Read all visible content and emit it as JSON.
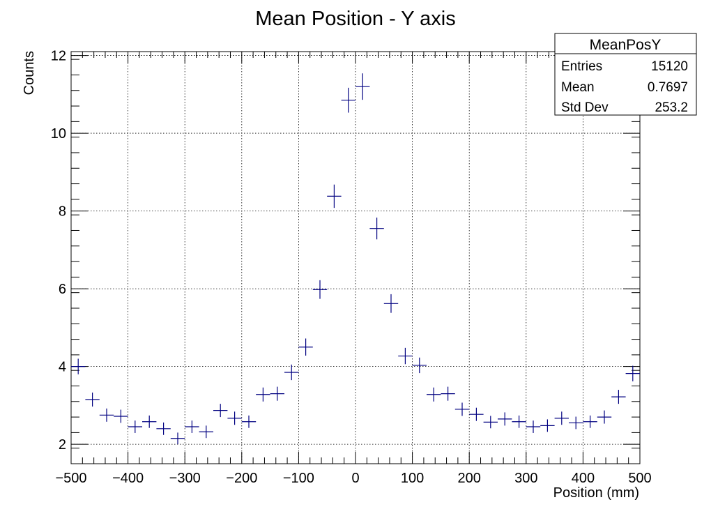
{
  "chart_data": {
    "type": "scatter",
    "title": "Mean Position - Y axis",
    "xlabel": "Position (mm)",
    "ylabel": "Counts",
    "xlim": [
      -500,
      500
    ],
    "ylim": [
      1.5,
      12.1
    ],
    "grid": true,
    "x_ticks": [
      -500,
      -400,
      -300,
      -200,
      -100,
      0,
      100,
      200,
      300,
      400,
      500
    ],
    "x_tick_labels": [
      "−500",
      "−400",
      "−300",
      "−200",
      "−100",
      "0",
      "100",
      "200",
      "300",
      "400",
      "500"
    ],
    "y_ticks": [
      2,
      4,
      6,
      8,
      10,
      12
    ],
    "y_tick_labels": [
      "2",
      "4",
      "6",
      "8",
      "10",
      "12"
    ],
    "marker_color": "#000080",
    "series": [
      {
        "x": [
          -487.5,
          -462.5,
          -437.5,
          -412.5,
          -387.5,
          -362.5,
          -337.5,
          -312.5,
          -287.5,
          -262.5,
          -237.5,
          -212.5,
          -187.5,
          -162.5,
          -137.5,
          -112.5,
          -87.5,
          -62.5,
          -37.5,
          -12.5,
          12.5,
          37.5,
          62.5,
          87.5,
          112.5,
          137.5,
          162.5,
          187.5,
          212.5,
          237.5,
          262.5,
          287.5,
          312.5,
          337.5,
          362.5,
          387.5,
          412.5,
          437.5,
          462.5,
          487.5
        ],
        "y": [
          4.0,
          3.15,
          2.75,
          2.72,
          2.45,
          2.58,
          2.4,
          2.15,
          2.45,
          2.32,
          2.87,
          2.67,
          2.58,
          3.28,
          3.3,
          3.85,
          4.5,
          5.98,
          8.38,
          10.85,
          11.2,
          7.55,
          5.62,
          4.27,
          4.03,
          3.28,
          3.3,
          2.9,
          2.77,
          2.57,
          2.65,
          2.58,
          2.45,
          2.48,
          2.67,
          2.55,
          2.58,
          2.7,
          3.22,
          3.82
        ],
        "y_err": [
          0.2,
          0.18,
          0.17,
          0.17,
          0.16,
          0.16,
          0.16,
          0.15,
          0.16,
          0.16,
          0.17,
          0.17,
          0.16,
          0.18,
          0.18,
          0.2,
          0.22,
          0.24,
          0.3,
          0.32,
          0.34,
          0.28,
          0.24,
          0.21,
          0.2,
          0.18,
          0.18,
          0.17,
          0.17,
          0.16,
          0.17,
          0.16,
          0.16,
          0.16,
          0.17,
          0.16,
          0.16,
          0.17,
          0.18,
          0.2
        ],
        "x_halfwidth": 12.5
      }
    ],
    "stats_box": {
      "title": "MeanPosY",
      "rows": [
        {
          "label": "Entries",
          "value": "15120"
        },
        {
          "label": "Mean",
          "value": "0.7697"
        },
        {
          "label": "Std Dev",
          "value": "253.2"
        }
      ],
      "position": "top-right"
    }
  }
}
